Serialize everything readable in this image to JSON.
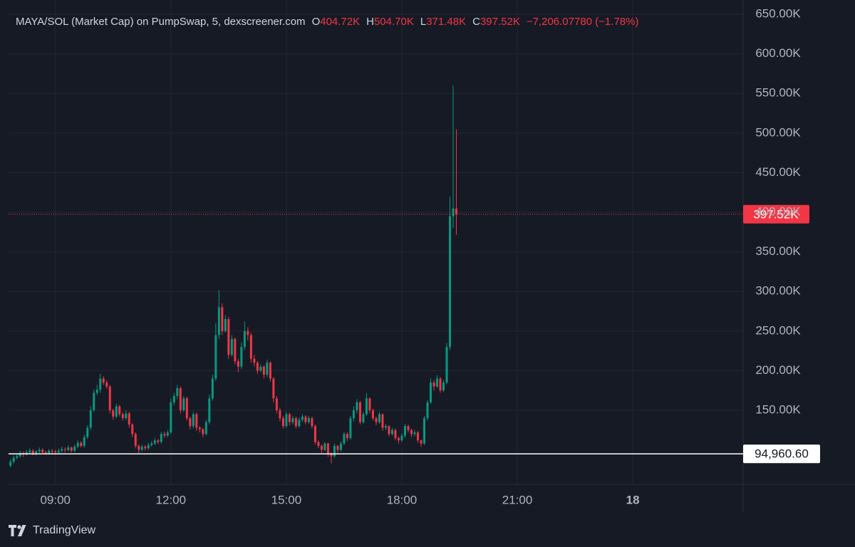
{
  "chart_data": {
    "type": "candlestick",
    "header": {
      "title": "MAYA/SOL (Market Cap) on PumpSwap, 5, dexscreener.com",
      "legend_items": [
        {
          "key": "O",
          "value": "404.72K"
        },
        {
          "key": "H",
          "value": "504.70K"
        },
        {
          "key": "L",
          "value": "371.48K"
        },
        {
          "key": "C",
          "value": "397.52K"
        }
      ],
      "change": "−7,206.07780 (−1.78%)"
    },
    "brand": "TradingView",
    "up_color": "#089981",
    "down_color": "#f23645",
    "grid": true,
    "xlim": [
      467,
      1612
    ],
    "xticks": [
      {
        "value": 540,
        "label": "09:00"
      },
      {
        "value": 720,
        "label": "12:00"
      },
      {
        "value": 900,
        "label": "15:00"
      },
      {
        "value": 1080,
        "label": "18:00"
      },
      {
        "value": 1260,
        "label": "21:00"
      },
      {
        "value": 1440,
        "label": "18"
      }
    ],
    "ylim": [
      56.5,
      668
    ],
    "yticks": [
      {
        "value": 150,
        "label": "150.00K"
      },
      {
        "value": 200,
        "label": "200.00K"
      },
      {
        "value": 250,
        "label": "250.00K"
      },
      {
        "value": 300,
        "label": "300.00K"
      },
      {
        "value": 350,
        "label": "350.00K"
      },
      {
        "value": 400,
        "label": "400.00K"
      },
      {
        "value": 450,
        "label": "450.00K"
      },
      {
        "value": 500,
        "label": "500.00K"
      },
      {
        "value": 550,
        "label": "550.00K"
      },
      {
        "value": 600,
        "label": "600.00K"
      },
      {
        "value": 650,
        "label": "650.00K"
      }
    ],
    "last_price_label": "397.52K",
    "reference_line": {
      "value": 94.9606,
      "label": "94,960.60"
    },
    "x": [
      470,
      475,
      480,
      485,
      490,
      495,
      500,
      505,
      510,
      515,
      520,
      525,
      530,
      535,
      540,
      545,
      550,
      555,
      560,
      565,
      570,
      575,
      580,
      585,
      590,
      595,
      600,
      605,
      610,
      615,
      620,
      625,
      630,
      635,
      640,
      645,
      650,
      655,
      660,
      665,
      670,
      675,
      680,
      685,
      690,
      695,
      700,
      705,
      710,
      715,
      720,
      725,
      730,
      735,
      740,
      745,
      750,
      755,
      760,
      765,
      770,
      775,
      780,
      785,
      790,
      795,
      800,
      805,
      810,
      815,
      820,
      825,
      830,
      835,
      840,
      845,
      850,
      855,
      860,
      865,
      870,
      875,
      880,
      885,
      890,
      895,
      900,
      905,
      910,
      915,
      920,
      925,
      930,
      935,
      940,
      945,
      950,
      955,
      960,
      965,
      970,
      975,
      980,
      985,
      990,
      995,
      1000,
      1005,
      1010,
      1015,
      1020,
      1025,
      1030,
      1035,
      1040,
      1045,
      1050,
      1055,
      1060,
      1065,
      1070,
      1075,
      1080,
      1085,
      1090,
      1095,
      1100,
      1105,
      1110,
      1115,
      1120,
      1125,
      1130,
      1135,
      1140,
      1145,
      1150,
      1155,
      1160,
      1165
    ],
    "open": [
      80,
      85,
      90,
      92,
      96,
      94,
      97,
      99,
      95,
      98,
      100,
      97,
      96,
      99,
      98,
      97,
      99,
      101,
      100,
      103,
      99,
      104,
      109,
      105,
      116,
      128,
      150,
      172,
      176,
      190,
      185,
      180,
      150,
      142,
      155,
      145,
      140,
      146,
      132,
      120,
      105,
      100,
      104,
      102,
      106,
      108,
      112,
      110,
      120,
      118,
      122,
      160,
      168,
      178,
      150,
      165,
      140,
      130,
      145,
      128,
      126,
      120,
      135,
      165,
      190,
      245,
      280,
      250,
      265,
      220,
      240,
      212,
      205,
      230,
      250,
      245,
      215,
      210,
      200,
      205,
      195,
      210,
      190,
      165,
      150,
      140,
      130,
      145,
      135,
      140,
      130,
      138,
      142,
      135,
      140,
      130,
      110,
      105,
      100,
      108,
      95,
      92,
      105,
      100,
      108,
      120,
      115,
      140,
      150,
      160,
      135,
      145,
      165,
      150,
      140,
      135,
      145,
      128,
      130,
      120,
      125,
      115,
      112,
      118,
      130,
      125,
      120,
      122,
      112,
      108,
      140,
      160,
      185,
      180,
      190,
      175,
      185,
      230,
      395,
      404.72
    ],
    "high": [
      88,
      93,
      95,
      99,
      98,
      100,
      102,
      101,
      100,
      103,
      102,
      99,
      101,
      101,
      100,
      102,
      104,
      103,
      106,
      104,
      107,
      112,
      111,
      119,
      131,
      155,
      176,
      182,
      196,
      193,
      188,
      182,
      152,
      158,
      157,
      148,
      150,
      148,
      134,
      122,
      107,
      107,
      106,
      109,
      111,
      115,
      114,
      123,
      123,
      125,
      165,
      172,
      182,
      180,
      168,
      167,
      142,
      148,
      147,
      130,
      128,
      138,
      170,
      195,
      260,
      302,
      285,
      270,
      268,
      245,
      242,
      215,
      236,
      262,
      255,
      248,
      220,
      212,
      208,
      207,
      214,
      212,
      192,
      168,
      153,
      143,
      148,
      147,
      143,
      142,
      141,
      145,
      144,
      143,
      142,
      132,
      112,
      107,
      110,
      109,
      97,
      108,
      106,
      111,
      123,
      122,
      143,
      155,
      164,
      162,
      148,
      172,
      166,
      152,
      142,
      148,
      146,
      133,
      131,
      128,
      127,
      117,
      121,
      133,
      132,
      127,
      125,
      124,
      113,
      143,
      163,
      190,
      188,
      194,
      192,
      188,
      235,
      420,
      560,
      504.7
    ],
    "low": [
      78,
      83,
      88,
      90,
      91,
      93,
      95,
      93,
      93,
      96,
      95,
      94,
      94,
      95,
      94,
      95,
      97,
      97,
      98,
      97,
      97,
      102,
      103,
      103,
      114,
      125,
      148,
      169,
      172,
      182,
      177,
      146,
      138,
      140,
      142,
      137,
      138,
      128,
      116,
      102,
      96,
      98,
      99,
      100,
      104,
      106,
      107,
      108,
      115,
      116,
      120,
      156,
      164,
      146,
      148,
      137,
      126,
      127,
      124,
      122,
      116,
      118,
      132,
      162,
      187,
      240,
      245,
      248,
      215,
      218,
      208,
      198,
      202,
      226,
      238,
      210,
      205,
      196,
      198,
      190,
      192,
      186,
      160,
      146,
      136,
      127,
      128,
      131,
      132,
      127,
      128,
      135,
      132,
      133,
      127,
      107,
      102,
      96,
      98,
      91,
      83,
      90,
      96,
      98,
      106,
      111,
      113,
      136,
      146,
      132,
      133,
      143,
      146,
      137,
      131,
      133,
      124,
      125,
      117,
      118,
      112,
      108,
      110,
      115,
      122,
      116,
      117,
      109,
      104,
      106,
      137,
      158,
      175,
      178,
      172,
      173,
      183,
      226,
      380,
      371.48
    ],
    "close": [
      85,
      90,
      92,
      96,
      94,
      97,
      99,
      95,
      98,
      100,
      97,
      96,
      99,
      98,
      97,
      99,
      101,
      100,
      103,
      99,
      104,
      109,
      105,
      116,
      128,
      150,
      172,
      176,
      190,
      185,
      180,
      150,
      142,
      155,
      145,
      140,
      146,
      132,
      120,
      105,
      100,
      104,
      102,
      106,
      108,
      112,
      110,
      120,
      118,
      122,
      160,
      168,
      178,
      150,
      165,
      140,
      130,
      145,
      128,
      126,
      120,
      135,
      165,
      190,
      245,
      280,
      250,
      265,
      220,
      240,
      212,
      205,
      230,
      250,
      245,
      215,
      210,
      200,
      205,
      195,
      210,
      190,
      165,
      150,
      140,
      130,
      145,
      135,
      140,
      130,
      138,
      142,
      135,
      140,
      130,
      110,
      105,
      100,
      108,
      95,
      92,
      105,
      100,
      108,
      120,
      115,
      140,
      150,
      160,
      135,
      145,
      165,
      150,
      140,
      135,
      145,
      128,
      130,
      120,
      125,
      115,
      112,
      118,
      130,
      125,
      120,
      122,
      112,
      108,
      140,
      160,
      185,
      180,
      190,
      175,
      185,
      230,
      395,
      404.72,
      397.52
    ]
  }
}
